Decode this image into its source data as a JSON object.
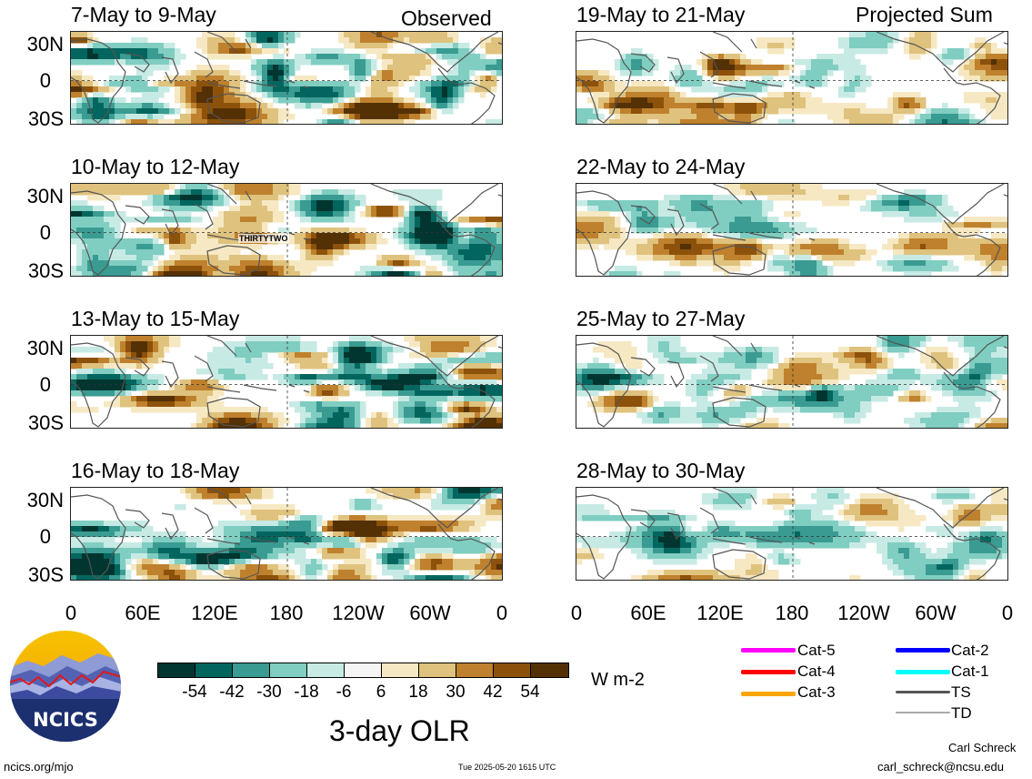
{
  "header": {
    "left_label": "Observed",
    "right_label": "Projected Sum"
  },
  "panels": [
    {
      "title": "7-May to 9-May",
      "seed": 3,
      "bias": 0.0,
      "amp": 1.0
    },
    {
      "title": "10-May to 12-May",
      "seed": 7,
      "bias": 0.0,
      "amp": 1.0
    },
    {
      "title": "13-May to 15-May",
      "seed": 11,
      "bias": 0.0,
      "amp": 1.0
    },
    {
      "title": "16-May to 18-May",
      "seed": 19,
      "bias": 0.0,
      "amp": 1.0
    },
    {
      "title": "19-May to 21-May",
      "seed": 23,
      "bias": 0.0,
      "amp": 0.7
    },
    {
      "title": "22-May to 24-May",
      "seed": 29,
      "bias": 0.0,
      "amp": 0.6
    },
    {
      "title": "25-May to 27-May",
      "seed": 31,
      "bias": 0.0,
      "amp": 0.6
    },
    {
      "title": "28-May to 30-May",
      "seed": 37,
      "bias": 0.0,
      "amp": 0.55
    }
  ],
  "storm_label": "THIRTYTWO",
  "y_axis_labels": [
    "30N",
    "0",
    "30S"
  ],
  "x_axis_labels": [
    "0",
    "60E",
    "120E",
    "180",
    "120W",
    "60W",
    "0"
  ],
  "colorbar": {
    "colors": [
      "#01352f",
      "#02665e",
      "#3a9b92",
      "#80cdc1",
      "#c7eae5",
      "#f5f5f5",
      "#f6e8c3",
      "#dfc27d",
      "#bf812d",
      "#8c510a",
      "#543005"
    ],
    "labels": [
      "-54",
      "-42",
      "-30",
      "-18",
      "-6",
      "6",
      "18",
      "30",
      "42",
      "54"
    ],
    "units": "W m-2"
  },
  "legend": [
    {
      "label": "Cat-5",
      "color": "#ff00ff"
    },
    {
      "label": "Cat-4",
      "color": "#ff0000"
    },
    {
      "label": "Cat-3",
      "color": "#ffa500"
    },
    {
      "label": "Cat-2",
      "color": "#0000ff"
    },
    {
      "label": "Cat-1",
      "color": "#00ffff"
    },
    {
      "label": "TS",
      "color": "#555555"
    },
    {
      "label": "TD",
      "color": "#aaaaaa"
    }
  ],
  "logo_text": "NCICS",
  "main_title": "3-day OLR",
  "footer": {
    "url": "ncics.org/mjo",
    "timestamp": "Tue 2025-05-20 1615 UTC",
    "author": "Carl Schreck",
    "email": "carl_schreck@ncsu.edu"
  }
}
